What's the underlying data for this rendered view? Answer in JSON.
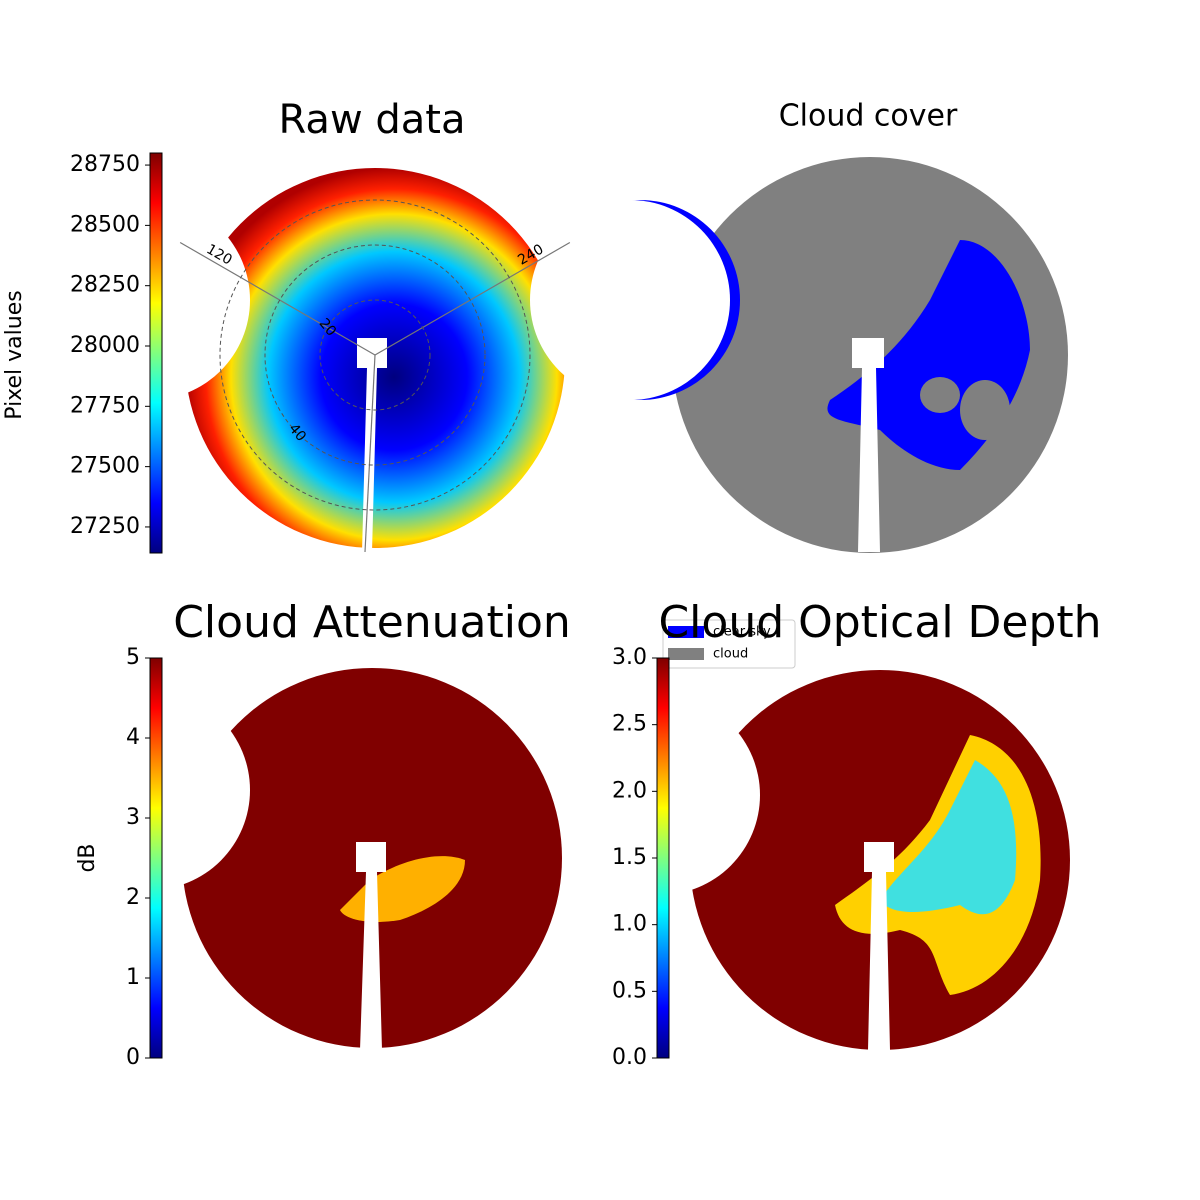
{
  "chart_data": [
    {
      "type": "image",
      "title": "Raw data",
      "colorbar": {
        "label": "Pixel values",
        "colormap": "jet",
        "lim": [
          27142,
          28800
        ],
        "ticks": [
          27250,
          27500,
          27750,
          28000,
          28250,
          28500,
          28750
        ]
      },
      "azimuth_ticks": [
        120,
        240
      ],
      "zenith_ticks": [
        20,
        40
      ]
    },
    {
      "type": "image",
      "title": "Cloud cover",
      "legend": [
        {
          "name": "clear sky",
          "color": "#0000ff"
        },
        {
          "name": "cloud",
          "color": "#808080"
        }
      ]
    },
    {
      "type": "image",
      "title": "Cloud Attenuation",
      "colorbar": {
        "label": "dB",
        "colormap": "jet",
        "lim": [
          0,
          5
        ],
        "ticks": [
          0,
          1,
          2,
          3,
          4,
          5
        ]
      }
    },
    {
      "type": "image",
      "title": "Cloud Optical Depth",
      "colorbar": {
        "colormap": "jet",
        "lim": [
          0,
          3
        ],
        "ticks": [
          {
            "value": 0,
            "label": "0.0"
          },
          {
            "value": 0.5,
            "label": "0.5"
          },
          {
            "value": 1,
            "label": "1.0"
          },
          {
            "value": 1.5,
            "label": "1.5"
          },
          {
            "value": 2,
            "label": "2.0"
          },
          {
            "value": 2.5,
            "label": "2.5"
          },
          {
            "value": 3,
            "label": "3.0"
          }
        ]
      }
    }
  ]
}
